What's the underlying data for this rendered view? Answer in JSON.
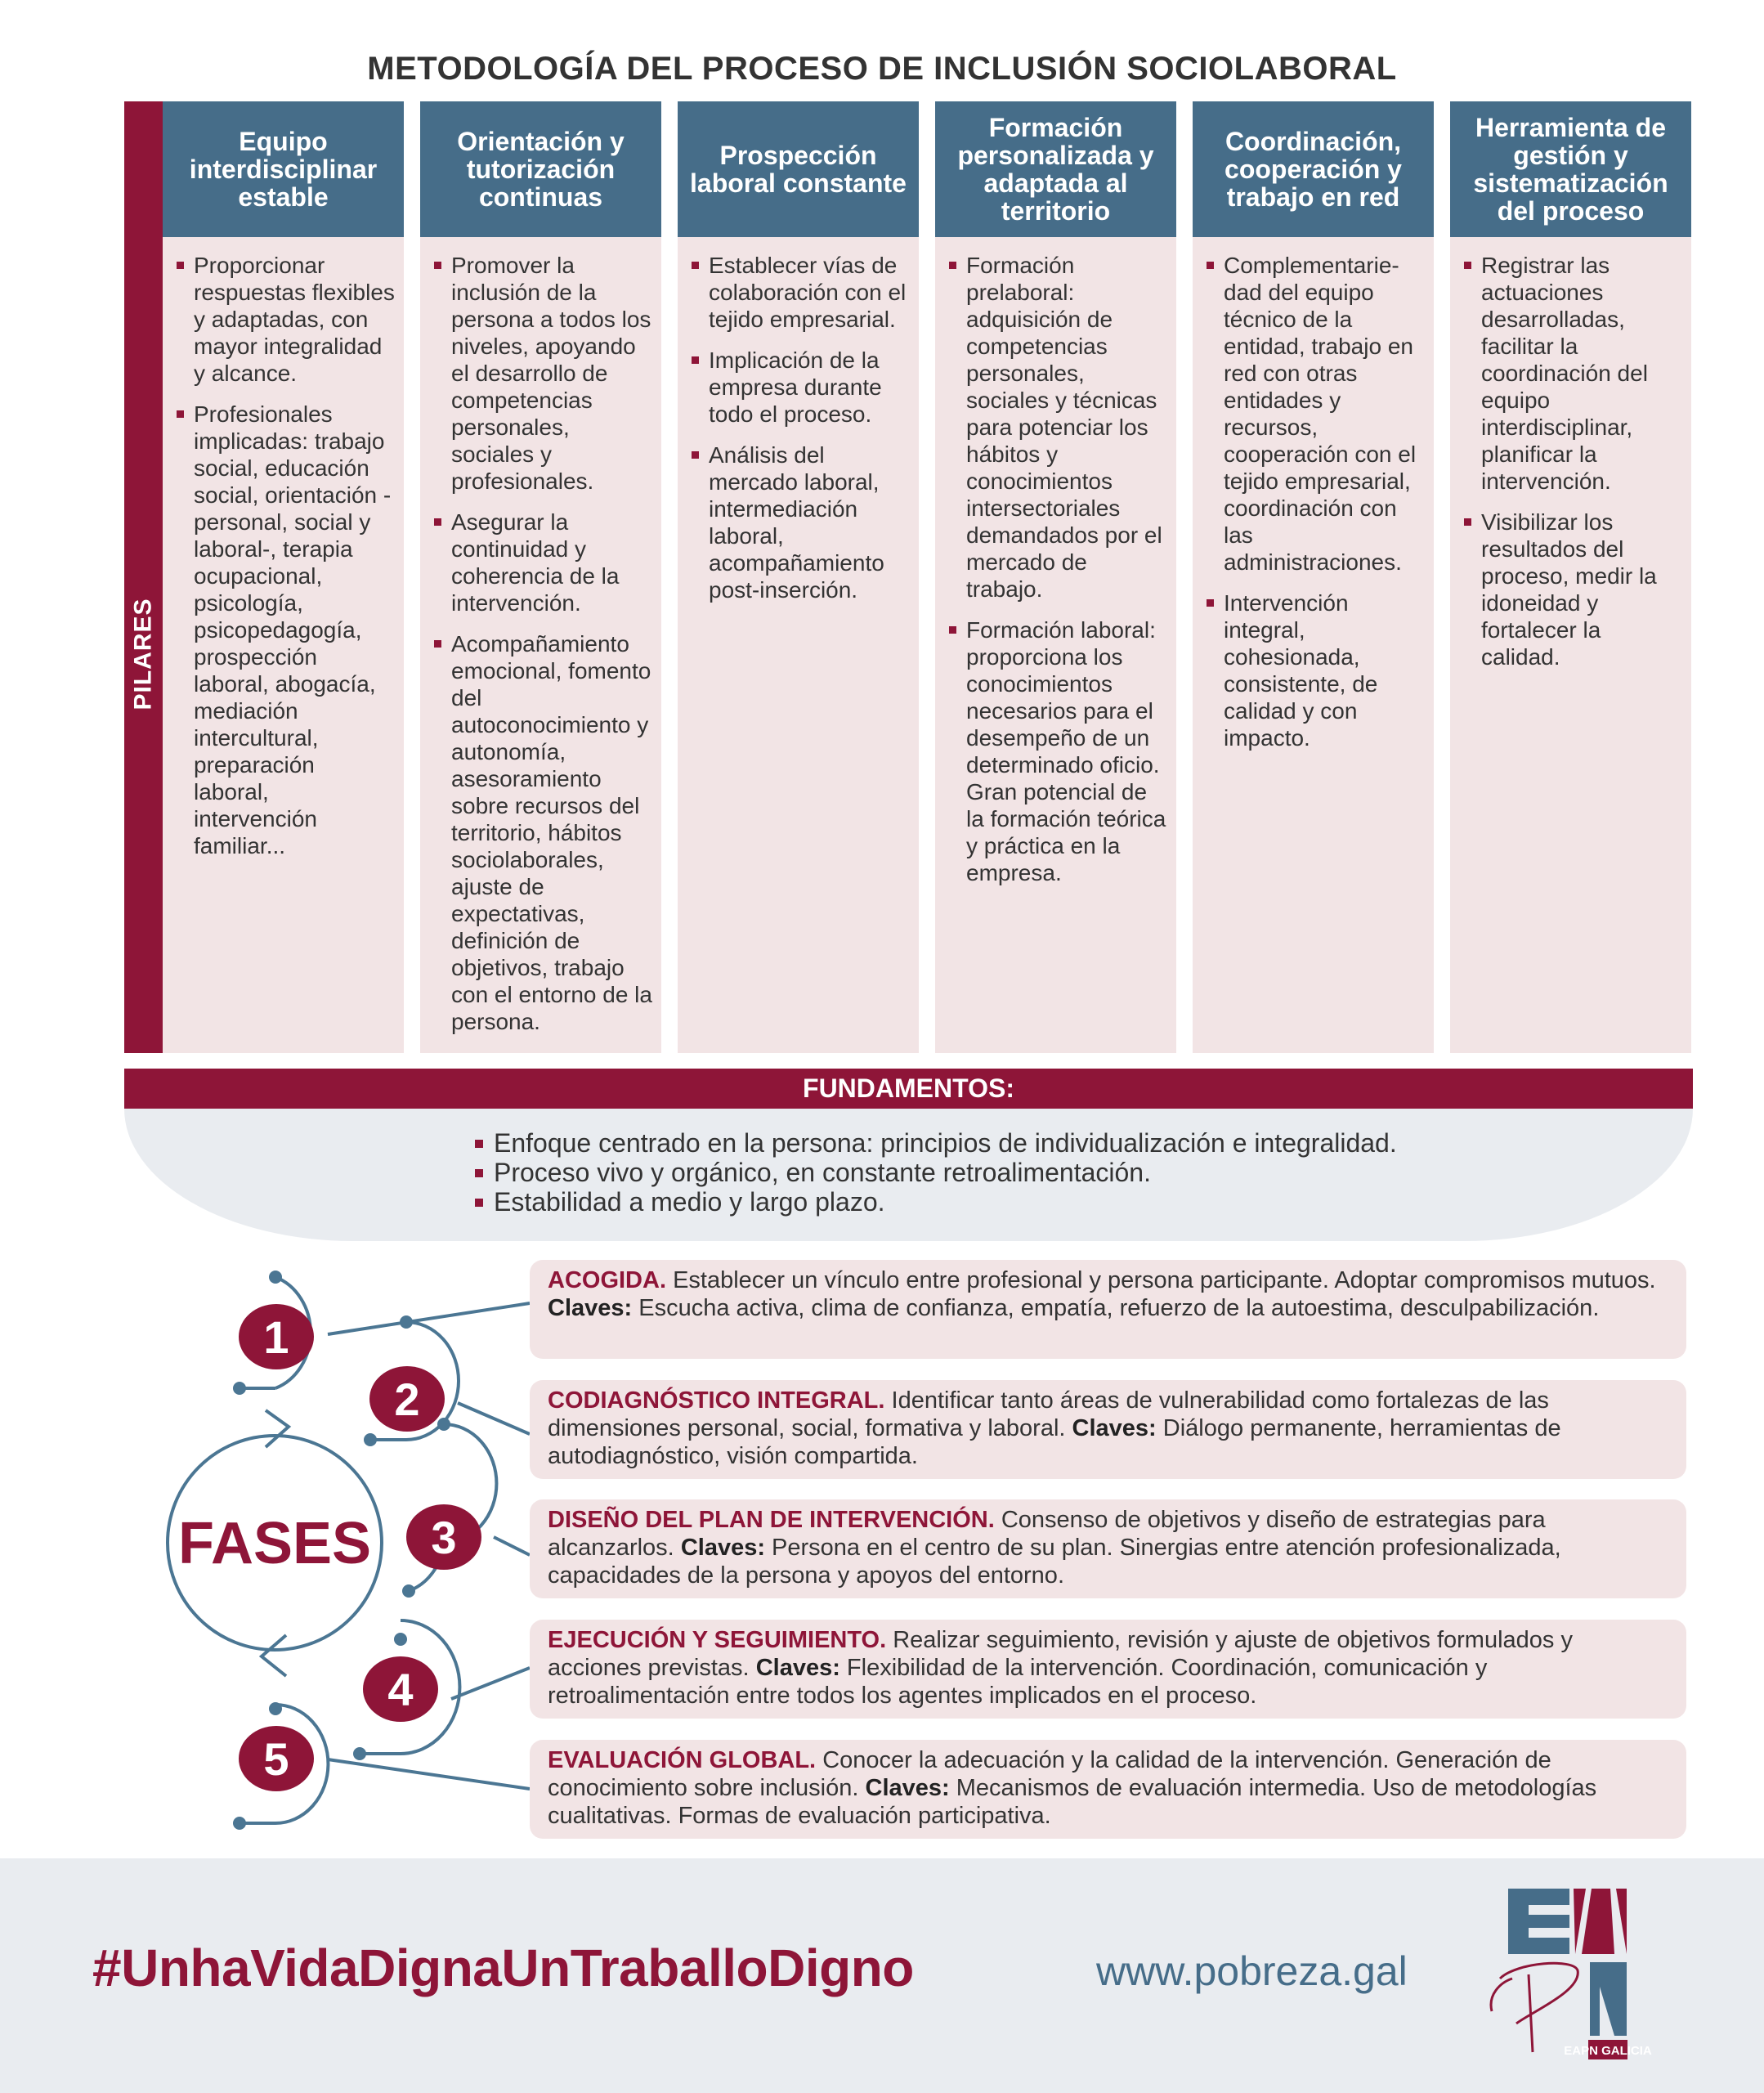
{
  "title": "METODOLOGÍA DEL PROCESO DE INCLUSIÓN SOCIOLABORAL",
  "pilares_label": "PILARES",
  "columns": [
    {
      "header": "Equipo interdisciplinar estable",
      "items": [
        "Proporcionar respuestas flexibles y adaptadas, con mayor integralidad y alcance.",
        "Profesionales implicadas: trabajo social, educación social, orientación -personal, social y laboral-, terapia ocupacional, psicología, psicopedagogía, prospección laboral, abogacía, mediación intercultural, preparación laboral, intervención familiar..."
      ]
    },
    {
      "header": "Orientación y tutorización continuas",
      "items": [
        "Promover la inclusión de la persona a todos los niveles, apoyando el desarrollo de competencias personales, sociales y profesionales.",
        "Asegurar la continuidad y coherencia de la intervención.",
        "Acompañamiento emocional, fomento del autoconocimiento y autonomía, asesoramiento sobre recursos del territorio, hábitos sociolaborales, ajuste de expectativas, definición de objetivos, trabajo con el entorno de la persona."
      ]
    },
    {
      "header": "Prospección laboral constante",
      "items": [
        "Establecer vías de colaboración con el tejido empresarial.",
        "Implicación de la empresa durante todo el proceso.",
        "Análisis del mercado laboral, intermediación laboral, acompañamiento post-inserción."
      ]
    },
    {
      "header": "Formación personalizada y adaptada al territorio",
      "items": [
        "Formación prelaboral: adquisición de competencias personales, sociales y técnicas para potenciar los hábitos y conocimientos intersectoriales demandados por el mercado de trabajo.",
        "Formación laboral: proporciona los conocimientos necesarios para el desempeño de un determinado oficio. Gran potencial de la formación teórica y práctica en la empresa."
      ]
    },
    {
      "header": "Coordinación, cooperación y trabajo en red",
      "items": [
        "Complementarie-dad del equipo técnico de la entidad, trabajo en red con otras entidades y recursos, cooperación con el tejido empresarial, coordinación con las administraciones.",
        "Intervención integral, cohesionada, consistente, de calidad y con impacto."
      ]
    },
    {
      "header": "Herramienta de gestión y sistematización del proceso",
      "items": [
        "Registrar las actuaciones desarrolladas, facilitar la coordinación del equipo interdisciplinar, planificar la intervención.",
        "Visibilizar los resultados del proceso, medir la idoneidad y fortalecer la calidad."
      ]
    }
  ],
  "fundamentos": {
    "title": "FUNDAMENTOS:",
    "items": [
      "Enfoque centrado en la persona: principios de individualización e integralidad.",
      "Proceso vivo y orgánico, en constante retroalimentación.",
      "Estabilidad a medio y largo plazo."
    ]
  },
  "fases": {
    "label": "FASES",
    "phases": [
      {
        "number": "1",
        "title": "ACOGIDA.",
        "text": "Establecer un vínculo entre profesional y persona participante. Adoptar compromisos mutuos.",
        "claves_label": "Claves:",
        "claves": "Escucha activa, clima de confianza, empatía, refuerzo de la autoestima, desculpabilización."
      },
      {
        "number": "2",
        "title": "CODIAGNÓSTICO INTEGRAL.",
        "text": "Identificar tanto áreas de vulnerabilidad como fortalezas de las dimensiones personal, social, formativa y laboral.",
        "claves_label": "Claves:",
        "claves": "Diálogo permanente, herramientas de autodiagnóstico, visión compartida."
      },
      {
        "number": "3",
        "title": "DISEÑO DEL PLAN DE INTERVENCIÓN.",
        "text": "Consenso de objetivos y diseño de estrategias para alcanzarlos.",
        "claves_label": "Claves:",
        "claves": "Persona en el centro de su plan. Sinergias entre atención profesionalizada, capacidades de la persona y apoyos del entorno."
      },
      {
        "number": "4",
        "title": "EJECUCIÓN Y SEGUIMIENTO.",
        "text": "Realizar seguimiento, revisión y ajuste de objetivos formulados y acciones previstas.",
        "claves_label": "Claves:",
        "claves": "Flexibilidad de la intervención. Coordinación, comunicación y retroalimentación entre todos los agentes implicados en el proceso."
      },
      {
        "number": "5",
        "title": "EVALUACIÓN GLOBAL.",
        "text": "Conocer la adecuación y la calidad de la intervención. Generación de conocimiento sobre inclusión.",
        "claves_label": "Claves:",
        "claves": "Mecanismos de evaluación intermedia. Uso de metodologías cualitativas. Formas de evaluación participativa."
      }
    ]
  },
  "footer": {
    "hashtag": "#UnhaVidaDignaUnTraballoDigno",
    "url": "www.pobreza.gal",
    "logo_text": "EAPN GALICIA"
  },
  "colors": {
    "maroon": "#8e1538",
    "steel_blue": "#466d89",
    "pink_bg": "#f2e4e5",
    "gray_bg": "#e9ecf0"
  }
}
